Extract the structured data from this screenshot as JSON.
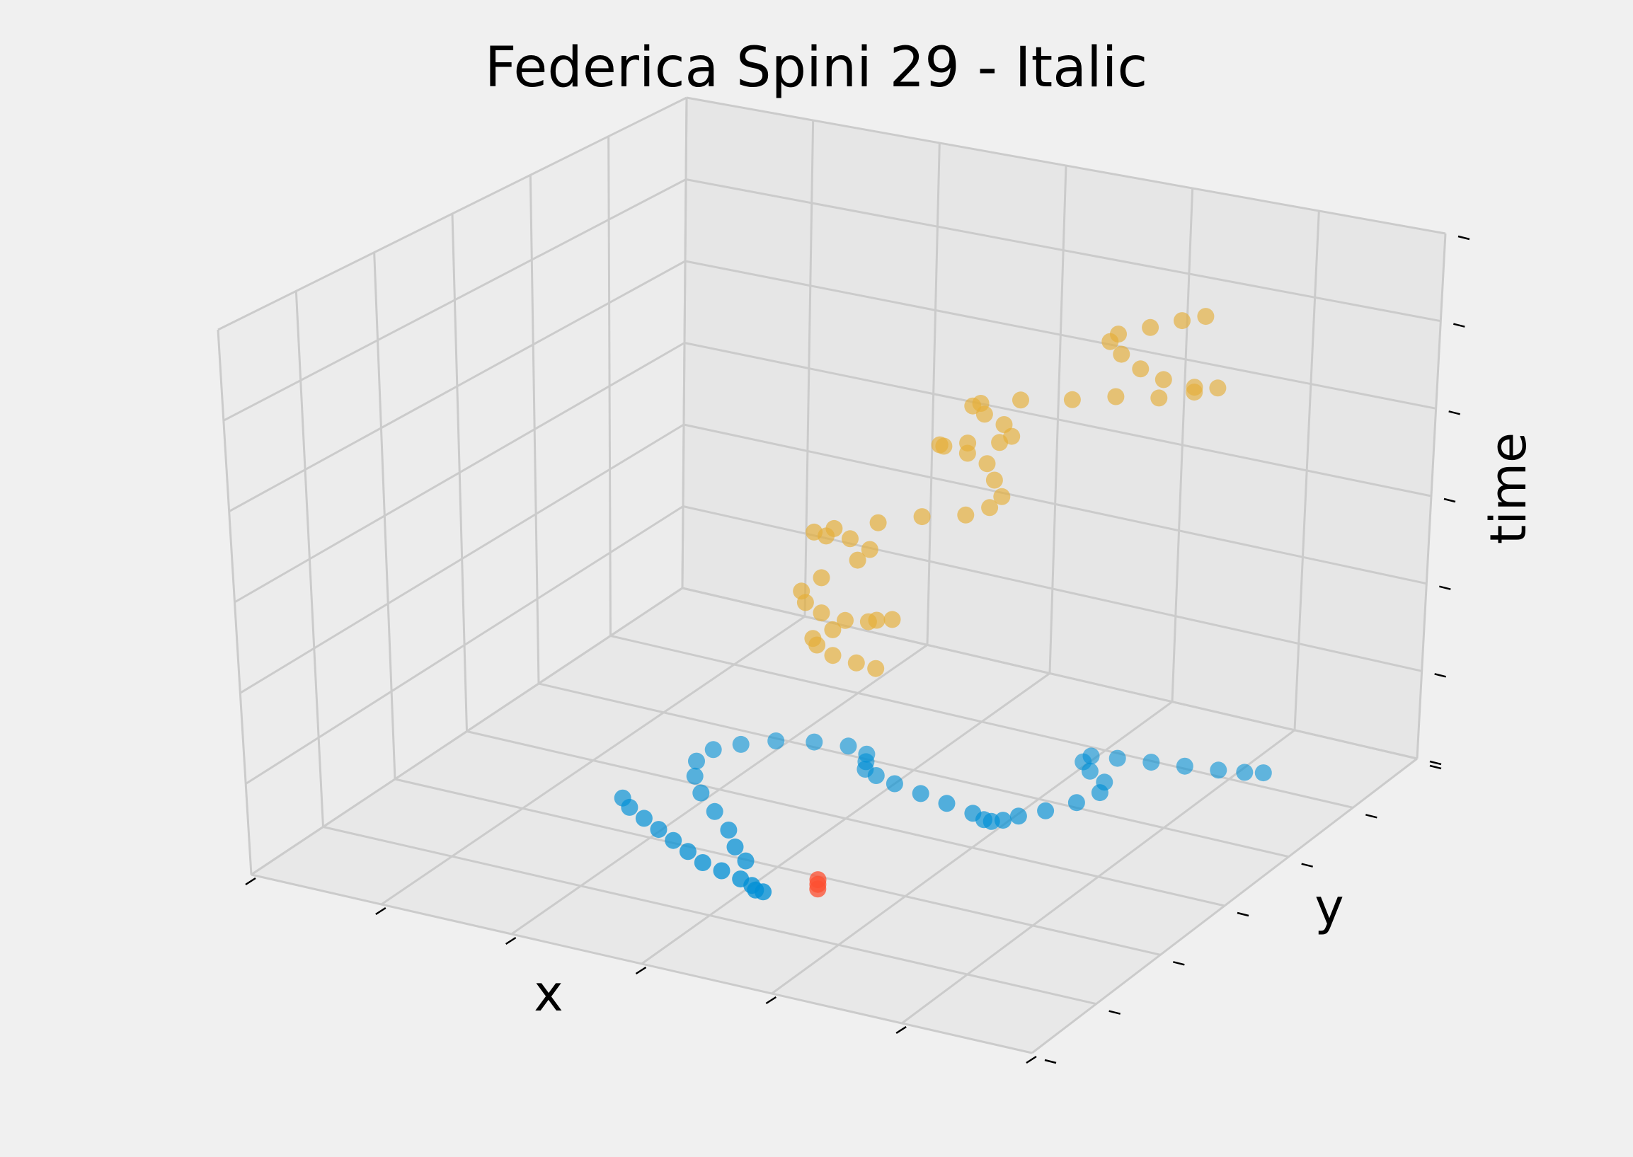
{
  "chart_data": {
    "type": "scatter",
    "projection": "3d",
    "title": "Federica Spini 29 - Italic",
    "xlabel": "x",
    "ylabel": "y",
    "zlabel": "time",
    "grid": true,
    "tick_labels_shown": false,
    "colors": {
      "background": "#f0f0f0",
      "grid": "#cbcbcb",
      "blue": "#008fd5",
      "orange": "#e5ae38",
      "red": "#fc4f30"
    },
    "series": [
      {
        "color": "#008fd5",
        "points": [
          [
            0.25,
            0.42,
            0.0
          ],
          [
            0.27,
            0.4,
            0.0
          ],
          [
            0.3,
            0.38,
            0.0
          ],
          [
            0.33,
            0.36,
            0.0
          ],
          [
            0.36,
            0.34,
            0.0
          ],
          [
            0.39,
            0.32,
            0.0
          ],
          [
            0.42,
            0.3,
            0.0
          ],
          [
            0.45,
            0.29,
            0.0
          ],
          [
            0.48,
            0.28,
            0.0
          ],
          [
            0.5,
            0.27,
            0.0
          ],
          [
            0.51,
            0.26,
            0.0
          ],
          [
            0.52,
            0.26,
            0.0
          ],
          [
            0.46,
            0.33,
            0.0
          ],
          [
            0.43,
            0.36,
            0.0
          ],
          [
            0.4,
            0.4,
            0.0
          ],
          [
            0.36,
            0.44,
            0.0
          ],
          [
            0.32,
            0.48,
            0.0
          ],
          [
            0.29,
            0.52,
            0.0
          ],
          [
            0.27,
            0.56,
            0.0
          ],
          [
            0.27,
            0.6,
            0.0
          ],
          [
            0.29,
            0.63,
            0.0
          ],
          [
            0.32,
            0.66,
            0.0
          ],
          [
            0.36,
            0.68,
            0.0
          ],
          [
            0.4,
            0.69,
            0.0
          ],
          [
            0.43,
            0.68,
            0.0
          ],
          [
            0.44,
            0.66,
            0.0
          ],
          [
            0.45,
            0.64,
            0.0
          ],
          [
            0.47,
            0.63,
            0.0
          ],
          [
            0.5,
            0.62,
            0.0
          ],
          [
            0.54,
            0.61,
            0.0
          ],
          [
            0.58,
            0.6,
            0.0
          ],
          [
            0.62,
            0.59,
            0.0
          ],
          [
            0.64,
            0.58,
            0.0
          ],
          [
            0.65,
            0.58,
            0.0
          ],
          [
            0.66,
            0.59,
            0.0
          ],
          [
            0.67,
            0.61,
            0.0
          ],
          [
            0.69,
            0.64,
            0.0
          ],
          [
            0.71,
            0.68,
            0.0
          ],
          [
            0.72,
            0.72,
            0.0
          ],
          [
            0.71,
            0.75,
            0.0
          ],
          [
            0.68,
            0.77,
            0.0
          ],
          [
            0.66,
            0.79,
            0.0
          ],
          [
            0.66,
            0.81,
            0.0
          ],
          [
            0.69,
            0.82,
            0.0
          ],
          [
            0.73,
            0.83,
            0.0
          ],
          [
            0.77,
            0.84,
            0.0
          ],
          [
            0.81,
            0.85,
            0.0
          ],
          [
            0.84,
            0.86,
            0.0
          ],
          [
            0.86,
            0.87,
            0.0
          ]
        ]
      },
      {
        "color": "#e5ae38",
        "points": [
          [
            0.52,
            0.53,
            0.3
          ],
          [
            0.5,
            0.52,
            0.31
          ],
          [
            0.48,
            0.5,
            0.33
          ],
          [
            0.47,
            0.48,
            0.36
          ],
          [
            0.47,
            0.47,
            0.38
          ],
          [
            0.49,
            0.48,
            0.4
          ],
          [
            0.52,
            0.51,
            0.41
          ],
          [
            0.54,
            0.53,
            0.41
          ],
          [
            0.52,
            0.53,
            0.4
          ],
          [
            0.49,
            0.51,
            0.4
          ],
          [
            0.47,
            0.49,
            0.42
          ],
          [
            0.46,
            0.47,
            0.45
          ],
          [
            0.46,
            0.46,
            0.48
          ],
          [
            0.48,
            0.47,
            0.51
          ],
          [
            0.51,
            0.5,
            0.54
          ],
          [
            0.52,
            0.51,
            0.56
          ],
          [
            0.5,
            0.5,
            0.58
          ],
          [
            0.48,
            0.48,
            0.59
          ],
          [
            0.47,
            0.47,
            0.6
          ],
          [
            0.49,
            0.48,
            0.61
          ],
          [
            0.53,
            0.51,
            0.62
          ],
          [
            0.57,
            0.54,
            0.63
          ],
          [
            0.61,
            0.57,
            0.63
          ],
          [
            0.63,
            0.59,
            0.64
          ],
          [
            0.64,
            0.6,
            0.66
          ],
          [
            0.63,
            0.6,
            0.69
          ],
          [
            0.62,
            0.6,
            0.72
          ],
          [
            0.6,
            0.59,
            0.74
          ],
          [
            0.58,
            0.57,
            0.76
          ],
          [
            0.58,
            0.56,
            0.77
          ],
          [
            0.61,
            0.57,
            0.78
          ],
          [
            0.64,
            0.59,
            0.78
          ],
          [
            0.65,
            0.6,
            0.79
          ],
          [
            0.64,
            0.6,
            0.81
          ],
          [
            0.62,
            0.59,
            0.83
          ],
          [
            0.61,
            0.58,
            0.85
          ],
          [
            0.62,
            0.58,
            0.86
          ],
          [
            0.66,
            0.6,
            0.87
          ],
          [
            0.71,
            0.63,
            0.87
          ],
          [
            0.75,
            0.66,
            0.87
          ],
          [
            0.79,
            0.69,
            0.86
          ],
          [
            0.82,
            0.72,
            0.86
          ],
          [
            0.84,
            0.74,
            0.86
          ],
          [
            0.82,
            0.72,
            0.87
          ],
          [
            0.79,
            0.7,
            0.89
          ],
          [
            0.77,
            0.68,
            0.92
          ],
          [
            0.75,
            0.67,
            0.95
          ],
          [
            0.74,
            0.66,
            0.98
          ],
          [
            0.75,
            0.66,
            1.0
          ],
          [
            0.78,
            0.68,
            1.01
          ],
          [
            0.81,
            0.7,
            1.02
          ],
          [
            0.83,
            0.72,
            1.02
          ]
        ]
      },
      {
        "color": "#fc4f30",
        "points": [
          [
            0.57,
            0.3,
            0.0
          ],
          [
            0.57,
            0.3,
            0.01
          ],
          [
            0.57,
            0.3,
            0.02
          ]
        ]
      }
    ]
  }
}
